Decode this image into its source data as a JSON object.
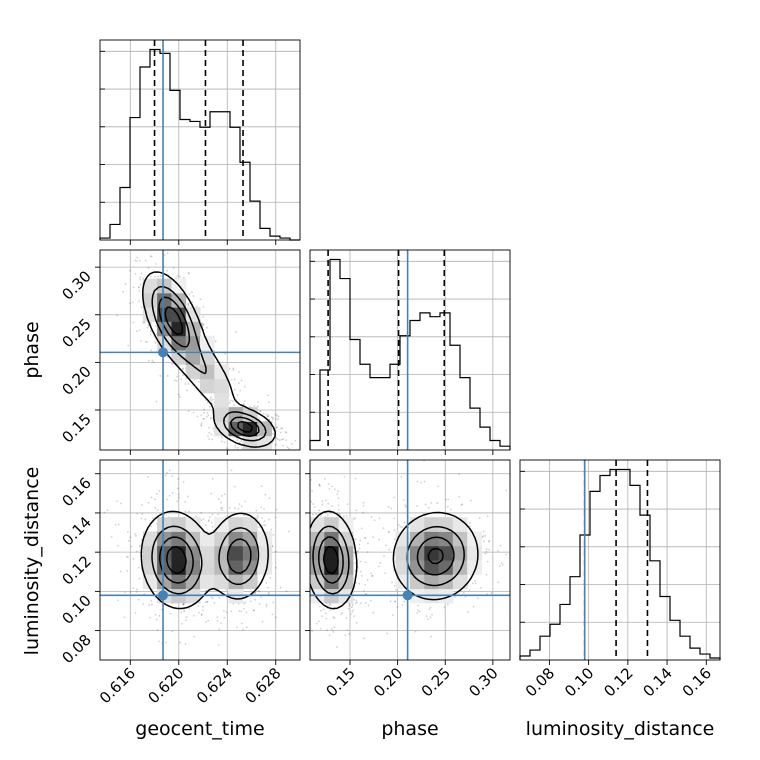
{
  "chart_data": {
    "type": "corner",
    "parameters": [
      "geocent_time",
      "phase",
      "luminosity_distance"
    ],
    "truths": {
      "geocent_time": 0.6187,
      "phase": 0.2105,
      "luminosity_distance": 0.098
    },
    "ranges": {
      "geocent_time": [
        0.6135,
        0.63
      ],
      "phase": [
        0.108,
        0.318
      ],
      "luminosity_distance": [
        0.065,
        0.167
      ]
    },
    "quantiles": {
      "geocent_time": [
        0.618,
        0.6222,
        0.6253
      ],
      "phase": [
        0.127,
        0.201,
        0.249
      ],
      "luminosity_distance": [
        0.098,
        0.114,
        0.13
      ]
    },
    "ticks": {
      "geocent_time": [
        "0.616",
        "0.620",
        "0.624",
        "0.628"
      ],
      "phase": [
        "0.15",
        "0.20",
        "0.25",
        "0.30"
      ],
      "luminosity_distance": [
        "0.08",
        "0.10",
        "0.12",
        "0.14",
        "0.16"
      ],
      "phase_y": [
        "0.15",
        "0.20",
        "0.25",
        "0.30"
      ],
      "luminosity_distance_y": [
        "0.08",
        "0.10",
        "0.12",
        "0.14",
        "0.16"
      ]
    },
    "histograms": {
      "geocent_time": [
        1,
        8,
        27,
        63,
        89,
        98,
        96,
        77,
        62,
        61,
        58,
        66,
        66,
        58,
        40,
        20,
        6,
        2,
        1,
        0
      ],
      "phase": [
        5,
        42,
        100,
        90,
        58,
        45,
        38,
        38,
        45,
        60,
        68,
        72,
        70,
        72,
        55,
        38,
        22,
        12,
        5,
        2
      ],
      "luminosity_distance": [
        2,
        5,
        12,
        18,
        28,
        42,
        63,
        85,
        93,
        96,
        96,
        88,
        73,
        50,
        32,
        20,
        12,
        6,
        3,
        1
      ]
    },
    "density_blobs": [
      {
        "x": "geocent_time",
        "y": "phase",
        "components": [
          {
            "cx": 0.6195,
            "cy": 0.246,
            "sx": 0.0012,
            "sy": 0.024,
            "rho": -0.55,
            "w": 1.0
          },
          {
            "cx": 0.6255,
            "cy": 0.132,
            "sx": 0.0012,
            "sy": 0.01,
            "rho": -0.35,
            "w": 1.0
          },
          {
            "cx": 0.6222,
            "cy": 0.19,
            "sx": 0.0016,
            "sy": 0.028,
            "rho": -0.75,
            "w": 0.35
          }
        ]
      },
      {
        "x": "geocent_time",
        "y": "luminosity_distance",
        "components": [
          {
            "cx": 0.6198,
            "cy": 0.116,
            "sx": 0.0014,
            "sy": 0.012,
            "rho": -0.1,
            "w": 1.0
          },
          {
            "cx": 0.625,
            "cy": 0.118,
            "sx": 0.0012,
            "sy": 0.011,
            "rho": 0.05,
            "w": 0.85
          }
        ]
      },
      {
        "x": "phase",
        "y": "luminosity_distance",
        "components": [
          {
            "cx": 0.13,
            "cy": 0.116,
            "sx": 0.013,
            "sy": 0.012,
            "rho": -0.1,
            "w": 1.0
          },
          {
            "cx": 0.24,
            "cy": 0.118,
            "sx": 0.022,
            "sy": 0.011,
            "rho": 0.05,
            "w": 0.9
          }
        ]
      }
    ]
  }
}
